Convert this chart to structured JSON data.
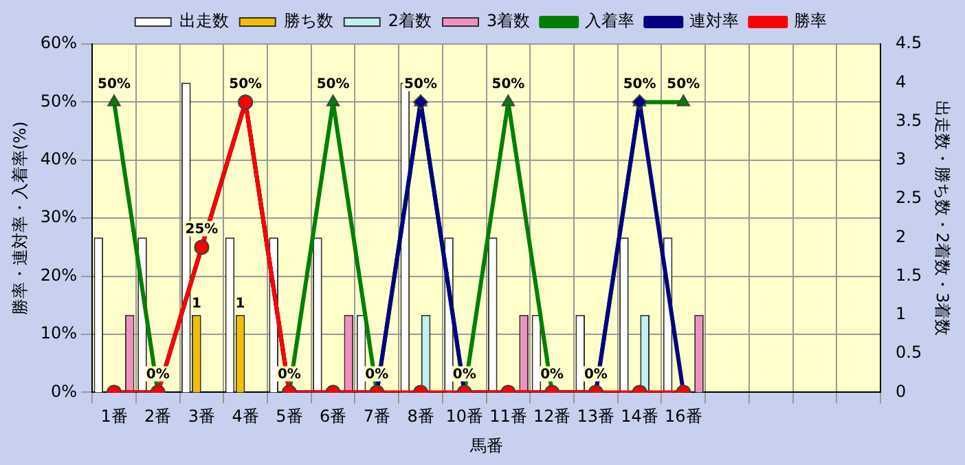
{
  "chart_data": {
    "type": "bar",
    "xlabel": "馬番",
    "ylabel": "勝率・連対率・入着率(%)",
    "y2label": "出走数・勝ち数・2着数・3着数",
    "categories": [
      "1番",
      "2番",
      "3番",
      "4番",
      "5番",
      "6番",
      "7番",
      "8番",
      "10番",
      "11番",
      "12番",
      "13番",
      "14番",
      "16番",
      null,
      null,
      null,
      null
    ],
    "series": [
      {
        "name": "出走数",
        "axis": "y2",
        "color": "#ffffff",
        "values": [
          2,
          2,
          4,
          2,
          2,
          2,
          1,
          4,
          2,
          2,
          1,
          1,
          2,
          2,
          null,
          null,
          null,
          null
        ]
      },
      {
        "name": "勝ち数",
        "axis": "y2",
        "color": "#f0c000",
        "values": [
          0,
          0,
          1,
          1,
          0,
          0,
          0,
          0,
          0,
          0,
          0,
          0,
          0,
          0,
          null,
          null,
          null,
          null
        ],
        "value_labels": [
          null,
          null,
          "1",
          "1",
          null,
          null,
          null,
          null,
          null,
          null,
          null,
          null,
          null,
          null,
          null,
          null,
          null,
          null
        ]
      },
      {
        "name": "2着数",
        "axis": "y2",
        "color": "#c0f0f0",
        "values": [
          0,
          0,
          0,
          0,
          0,
          0,
          0,
          1,
          0,
          0,
          0,
          0,
          1,
          0,
          null,
          null,
          null,
          null
        ]
      },
      {
        "name": "3着数",
        "axis": "y2",
        "color": "#f090c0",
        "values": [
          1,
          0,
          0,
          0,
          0,
          1,
          0,
          0,
          0,
          1,
          0,
          0,
          0,
          1,
          null,
          null,
          null,
          null
        ]
      },
      {
        "name": "入着率",
        "type": "line",
        "marker": "triangle",
        "color": "#008000",
        "values": [
          50,
          0,
          25,
          50,
          0,
          50,
          0,
          50,
          0,
          50,
          0,
          0,
          50,
          50,
          null,
          null,
          null,
          null
        ],
        "value_labels": [
          "50%",
          "0%",
          "25%",
          "50%",
          "0%",
          "50%",
          "0%",
          "50%",
          "0%",
          "50%",
          "0%",
          "0%",
          "50%",
          "50%",
          null,
          null,
          null,
          null
        ]
      },
      {
        "name": "連対率",
        "type": "line",
        "marker": "diamond",
        "color": "#000080",
        "values": [
          0,
          0,
          25,
          50,
          0,
          0,
          0,
          50,
          0,
          0,
          0,
          0,
          50,
          0,
          null,
          null,
          null,
          null
        ]
      },
      {
        "name": "勝率",
        "type": "line",
        "marker": "circle",
        "color": "#ff0000",
        "values": [
          0,
          0,
          25,
          50,
          0,
          0,
          0,
          0,
          0,
          0,
          0,
          0,
          0,
          0,
          null,
          null,
          null,
          null
        ]
      }
    ],
    "ylim": [
      0,
      60
    ],
    "yticks": [
      {
        "value": 0,
        "label": "0%"
      },
      {
        "value": 10,
        "label": "10%"
      },
      {
        "value": 20,
        "label": "20%"
      },
      {
        "value": 30,
        "label": "30%"
      },
      {
        "value": 40,
        "label": "40%"
      },
      {
        "value": 50,
        "label": "50%"
      },
      {
        "value": 60,
        "label": "60%"
      }
    ],
    "y2lim": [
      0,
      4.5
    ],
    "y2ticks": [
      0,
      0.5,
      1,
      1.5,
      2,
      2.5,
      3,
      3.5,
      4,
      4.5
    ],
    "grid": true,
    "legend": "top"
  }
}
